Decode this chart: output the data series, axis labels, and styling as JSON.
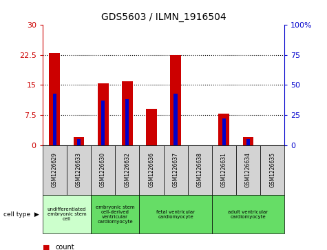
{
  "title": "GDS5603 / ILMN_1916504",
  "samples": [
    "GSM1226629",
    "GSM1226633",
    "GSM1226630",
    "GSM1226632",
    "GSM1226636",
    "GSM1226637",
    "GSM1226638",
    "GSM1226631",
    "GSM1226634",
    "GSM1226635"
  ],
  "counts": [
    23,
    2,
    15.5,
    16,
    9,
    22.5,
    0,
    7.8,
    2,
    0
  ],
  "percentiles": [
    43,
    5,
    37,
    38,
    0,
    43,
    0,
    22,
    5,
    0
  ],
  "ylim_left": [
    0,
    30
  ],
  "ylim_right": [
    0,
    100
  ],
  "yticks_left": [
    0,
    7.5,
    15,
    22.5,
    30
  ],
  "yticks_right": [
    0,
    25,
    50,
    75,
    100
  ],
  "ytick_labels_left": [
    "0",
    "7.5",
    "15",
    "22.5",
    "30"
  ],
  "ytick_labels_right": [
    "0",
    "25",
    "50",
    "75",
    "100%"
  ],
  "cell_type_groups": [
    {
      "label": "undifferentiated\nembryonic stem\ncell",
      "start": 0,
      "end": 2,
      "color": "#ccffcc"
    },
    {
      "label": "embryonic stem\ncell-derived\nventricular\ncardiomyocyte",
      "start": 2,
      "end": 4,
      "color": "#66dd66"
    },
    {
      "label": "fetal ventricular\ncardiomyocyte",
      "start": 4,
      "end": 7,
      "color": "#66dd66"
    },
    {
      "label": "adult ventricular\ncardiomyocyte",
      "start": 7,
      "end": 10,
      "color": "#66dd66"
    }
  ],
  "bar_color": "#cc0000",
  "percentile_color": "#0000cc",
  "bg_color": "#d3d3d3",
  "plot_bg": "#ffffff",
  "left_axis_color": "#cc0000",
  "right_axis_color": "#0000cc",
  "bar_width": 0.45,
  "percentile_bar_width": 0.15,
  "cell_type_label": "cell type"
}
